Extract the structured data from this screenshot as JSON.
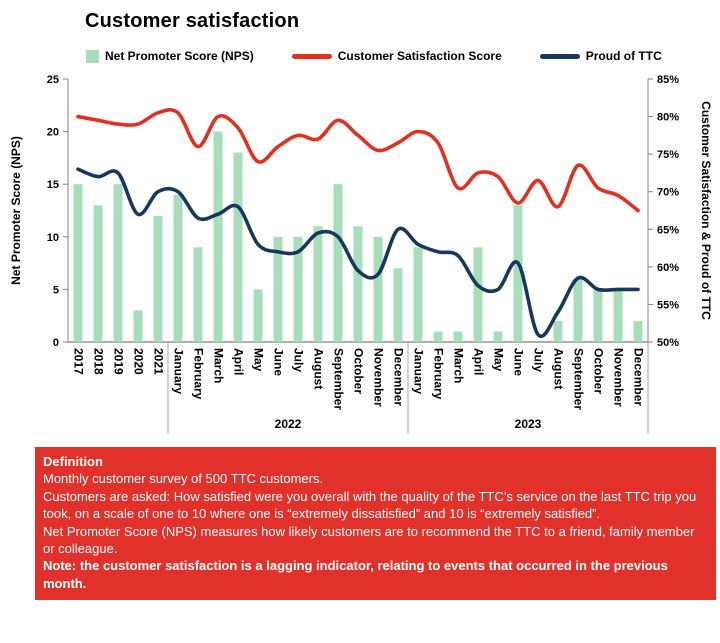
{
  "title": "Customer satisfaction",
  "legend": [
    {
      "label": "Net Promoter Score (NPS)",
      "marker": "square"
    },
    {
      "label": "Customer Satisfaction Score",
      "marker": "line"
    },
    {
      "label": "Proud of TTC",
      "marker": "line"
    }
  ],
  "chart_data": {
    "type": "bar",
    "categories": [
      "2017",
      "2018",
      "2019",
      "2020",
      "2021",
      "January",
      "February",
      "March",
      "April",
      "May",
      "June",
      "July",
      "August",
      "September",
      "October",
      "November",
      "December",
      "January",
      "February",
      "March",
      "April",
      "May",
      "June",
      "July",
      "August",
      "September",
      "October",
      "November",
      "December"
    ],
    "x_groups": [
      {
        "label": "2022",
        "start": 5,
        "end": 16
      },
      {
        "label": "2023",
        "start": 17,
        "end": 28
      }
    ],
    "y_left": {
      "title": "Net Promoter Score (NPS)",
      "min": 0,
      "max": 25,
      "step": 5,
      "suffix": ""
    },
    "y_right": {
      "title": "Customer Satisfaction & Proud of TTC",
      "min": 50,
      "max": 85,
      "step": 5,
      "suffix": "%"
    },
    "series": [
      {
        "name": "Net Promoter Score (NPS)",
        "type": "bar",
        "axis": "left",
        "color": "#A7DDB8",
        "values": [
          15,
          13,
          15,
          3,
          12,
          14,
          9,
          20,
          18,
          5,
          10,
          10,
          11,
          15,
          11,
          10,
          7,
          9,
          1,
          1,
          9,
          1,
          13,
          0,
          2,
          6,
          5,
          5,
          2
        ]
      },
      {
        "name": "Customer Satisfaction Score",
        "type": "line",
        "axis": "right",
        "color": "#E0301E",
        "values": [
          80,
          79.5,
          79,
          79,
          80.5,
          80.5,
          76,
          80,
          78.5,
          74,
          76,
          77.5,
          77,
          79.5,
          77.5,
          75.5,
          76.5,
          78,
          76.5,
          70.5,
          72.5,
          72,
          68.5,
          71.5,
          68,
          73.5,
          70.5,
          69.5,
          67.5
        ]
      },
      {
        "name": "Proud of TTC",
        "type": "line",
        "axis": "right",
        "color": "#17375E",
        "values": [
          73,
          72,
          72.5,
          67,
          70,
          70,
          66.5,
          67,
          68,
          63,
          62,
          62,
          64.5,
          64,
          59.5,
          59,
          65,
          63,
          62,
          61.5,
          57.5,
          57,
          60.5,
          51,
          54,
          58.5,
          57,
          57,
          57
        ]
      }
    ],
    "grid": false,
    "legend_position": "top"
  },
  "definition": {
    "background": "#E2312A",
    "title": "Definition",
    "lines": [
      {
        "text": "Monthly customer survey of 500 TTC customers.",
        "bold": false
      },
      {
        "text": "Customers are asked: How satisfied were you overall with the quality of the TTC’s service on the last TTC trip you took, on a scale of one to 10 where one is “extremely dissatisfied” and 10 is “extremely satisfied”.",
        "bold": false
      },
      {
        "text": "Net Promoter Score (NPS) measures how likely customers are to recommend the TTC to a friend, family member or colleague.",
        "bold": false
      },
      {
        "text": "Note: the customer satisfaction is a lagging indicator, relating to events that occurred in the previous month.",
        "bold": true
      }
    ]
  }
}
